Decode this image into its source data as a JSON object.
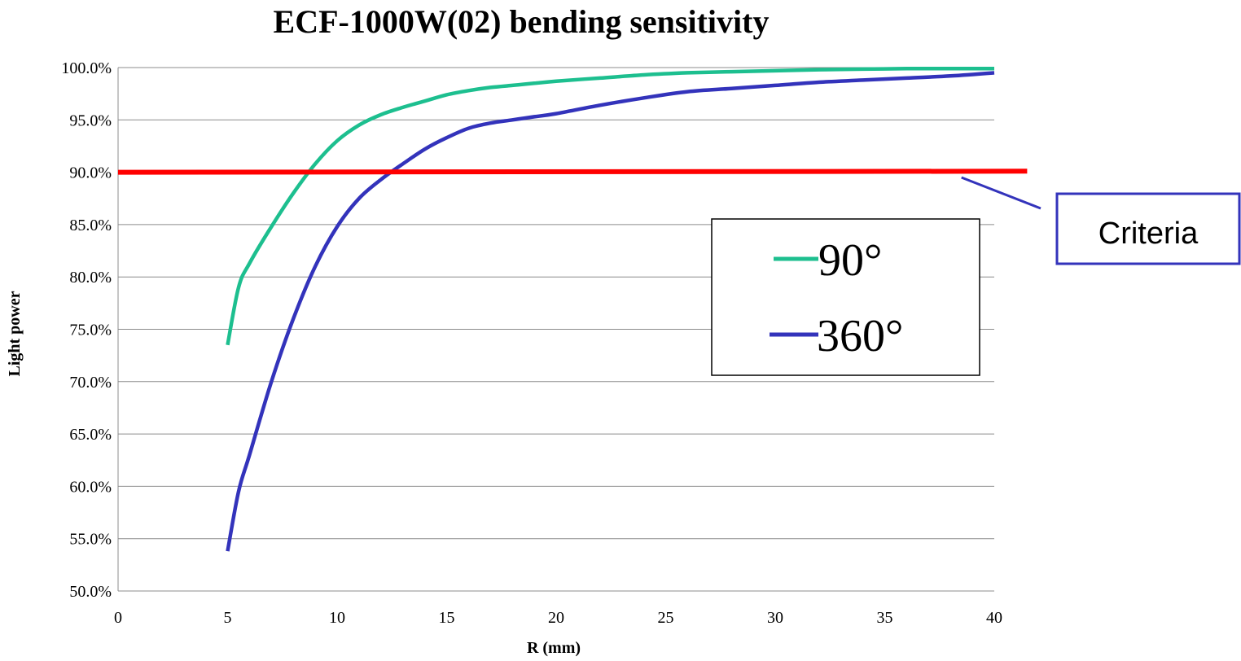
{
  "chart_data": {
    "type": "line",
    "title": "ECF-1000W(02) bending sensitivity",
    "xlabel": "R (mm)",
    "ylabel": "Light power",
    "xlim": [
      0,
      40
    ],
    "ylim": [
      50,
      100
    ],
    "x_ticks": [
      "0",
      "5",
      "10",
      "15",
      "20",
      "25",
      "30",
      "35",
      "40"
    ],
    "y_ticks": [
      "50.0%",
      "55.0%",
      "60.0%",
      "65.0%",
      "70.0%",
      "75.0%",
      "80.0%",
      "85.0%",
      "90.0%",
      "95.0%",
      "100.0%"
    ],
    "grid": true,
    "legend_position": "center-right",
    "series": [
      {
        "name": "90°",
        "color": "#1dbf8f",
        "x": [
          5,
          5.5,
          6,
          7,
          8,
          9,
          10,
          11,
          12,
          13,
          14,
          15,
          16,
          17,
          18,
          19,
          20,
          22,
          24,
          26,
          28,
          30,
          32,
          34,
          36,
          38,
          40
        ],
        "y": [
          73.5,
          79.0,
          81.3,
          84.8,
          88.0,
          90.8,
          93.0,
          94.5,
          95.5,
          96.2,
          96.8,
          97.4,
          97.8,
          98.1,
          98.3,
          98.5,
          98.7,
          99.0,
          99.3,
          99.5,
          99.6,
          99.7,
          99.8,
          99.85,
          99.9,
          99.9,
          99.9
        ]
      },
      {
        "name": "360°",
        "color": "#3333bb",
        "x": [
          5,
          5.5,
          6,
          7,
          8,
          9,
          10,
          11,
          12,
          13,
          14,
          15,
          16,
          17,
          18,
          19,
          20,
          22,
          24,
          26,
          28,
          30,
          32,
          34,
          36,
          38,
          40
        ],
        "y": [
          53.8,
          59.5,
          63.0,
          70.0,
          76.0,
          81.0,
          84.8,
          87.5,
          89.3,
          90.8,
          92.2,
          93.3,
          94.2,
          94.7,
          95.0,
          95.3,
          95.6,
          96.4,
          97.1,
          97.7,
          98.0,
          98.3,
          98.6,
          98.8,
          99.0,
          99.2,
          99.5
        ]
      },
      {
        "name": "",
        "color": "#ff0000",
        "x": [
          0,
          41.5
        ],
        "y": [
          90.0,
          90.1
        ]
      }
    ],
    "annotations": [
      {
        "text": "Criteria",
        "target_x": 38.5,
        "target_y": 89.5
      }
    ]
  }
}
